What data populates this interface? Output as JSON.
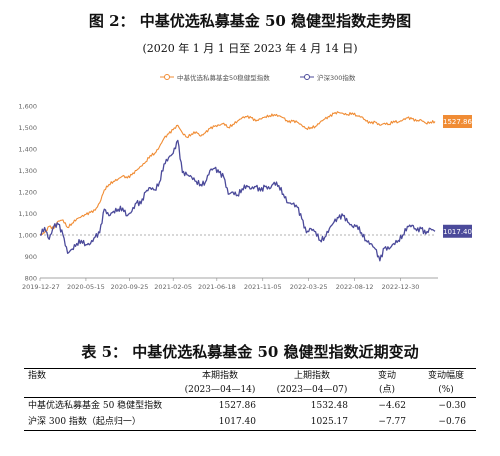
{
  "figure": {
    "title": "图 2： 中基优选私募基金 50 稳健型指数走势图",
    "subtitle": "(2020 年 1 月 1 日至 2023 年 4 月 14 日)"
  },
  "chart_data": {
    "type": "line",
    "title": "",
    "xlabel": "",
    "ylabel": "",
    "ylim": [
      800,
      1600
    ],
    "y_ticks": [
      "800",
      "900",
      "1,000",
      "1,100",
      "1,200",
      "1,300",
      "1,400",
      "1,500",
      "1,600"
    ],
    "x_ticks": [
      "2019-12-27",
      "2020-05-15",
      "2020-09-25",
      "2021-02-05",
      "2021-06-18",
      "2021-11-05",
      "2022-03-25",
      "2022-08-12",
      "2022-12-30"
    ],
    "reference_line": 1000,
    "legend_position": "top-center",
    "grid": false,
    "series": [
      {
        "name": "中基优选私募基金50稳健型指数",
        "color": "#F08C34",
        "end_label": "1527.86",
        "points": [
          [
            "2019-12-27",
            1000
          ],
          [
            "2020-01-10",
            1010
          ],
          [
            "2020-01-24",
            1040
          ],
          [
            "2020-02-07",
            1030
          ],
          [
            "2020-02-21",
            1065
          ],
          [
            "2020-03-06",
            1070
          ],
          [
            "2020-03-20",
            1035
          ],
          [
            "2020-04-03",
            1055
          ],
          [
            "2020-04-17",
            1075
          ],
          [
            "2020-05-01",
            1085
          ],
          [
            "2020-05-15",
            1095
          ],
          [
            "2020-05-29",
            1105
          ],
          [
            "2020-06-12",
            1115
          ],
          [
            "2020-06-26",
            1150
          ],
          [
            "2020-07-10",
            1210
          ],
          [
            "2020-07-24",
            1235
          ],
          [
            "2020-08-07",
            1250
          ],
          [
            "2020-08-21",
            1260
          ],
          [
            "2020-09-04",
            1275
          ],
          [
            "2020-09-18",
            1265
          ],
          [
            "2020-10-02",
            1280
          ],
          [
            "2020-10-16",
            1300
          ],
          [
            "2020-10-30",
            1320
          ],
          [
            "2020-11-13",
            1340
          ],
          [
            "2020-11-27",
            1370
          ],
          [
            "2020-12-11",
            1380
          ],
          [
            "2020-12-25",
            1410
          ],
          [
            "2021-01-08",
            1450
          ],
          [
            "2021-01-22",
            1470
          ],
          [
            "2021-02-05",
            1490
          ],
          [
            "2021-02-19",
            1510
          ],
          [
            "2021-03-05",
            1475
          ],
          [
            "2021-03-19",
            1455
          ],
          [
            "2021-04-02",
            1470
          ],
          [
            "2021-04-16",
            1480
          ],
          [
            "2021-04-30",
            1460
          ],
          [
            "2021-05-14",
            1475
          ],
          [
            "2021-05-28",
            1495
          ],
          [
            "2021-06-11",
            1505
          ],
          [
            "2021-06-25",
            1510
          ],
          [
            "2021-07-09",
            1520
          ],
          [
            "2021-07-23",
            1500
          ],
          [
            "2021-08-06",
            1515
          ],
          [
            "2021-08-20",
            1530
          ],
          [
            "2021-09-03",
            1545
          ],
          [
            "2021-09-17",
            1550
          ],
          [
            "2021-10-01",
            1545
          ],
          [
            "2021-10-15",
            1530
          ],
          [
            "2021-10-29",
            1540
          ],
          [
            "2021-11-12",
            1550
          ],
          [
            "2021-11-26",
            1555
          ],
          [
            "2021-12-10",
            1560
          ],
          [
            "2021-12-24",
            1555
          ],
          [
            "2022-01-07",
            1545
          ],
          [
            "2022-01-21",
            1525
          ],
          [
            "2022-02-04",
            1530
          ],
          [
            "2022-02-18",
            1525
          ],
          [
            "2022-03-04",
            1510
          ],
          [
            "2022-03-18",
            1495
          ],
          [
            "2022-04-01",
            1500
          ],
          [
            "2022-04-15",
            1505
          ],
          [
            "2022-04-29",
            1525
          ],
          [
            "2022-05-13",
            1540
          ],
          [
            "2022-05-27",
            1550
          ],
          [
            "2022-06-10",
            1565
          ],
          [
            "2022-06-24",
            1570
          ],
          [
            "2022-07-08",
            1565
          ],
          [
            "2022-07-22",
            1560
          ],
          [
            "2022-08-05",
            1568
          ],
          [
            "2022-08-19",
            1555
          ],
          [
            "2022-09-02",
            1550
          ],
          [
            "2022-09-16",
            1530
          ],
          [
            "2022-09-30",
            1520
          ],
          [
            "2022-10-14",
            1525
          ],
          [
            "2022-10-28",
            1510
          ],
          [
            "2022-11-11",
            1520
          ],
          [
            "2022-11-25",
            1515
          ],
          [
            "2022-12-09",
            1530
          ],
          [
            "2022-12-23",
            1525
          ],
          [
            "2023-01-06",
            1535
          ],
          [
            "2023-01-20",
            1545
          ],
          [
            "2023-02-03",
            1540
          ],
          [
            "2023-02-17",
            1530
          ],
          [
            "2023-03-03",
            1535
          ],
          [
            "2023-03-17",
            1520
          ],
          [
            "2023-03-31",
            1525
          ],
          [
            "2023-04-14",
            1527.86
          ]
        ]
      },
      {
        "name": "沪深300指数",
        "color": "#4B4A9A",
        "end_label": "1017.40",
        "points": [
          [
            "2019-12-27",
            1000
          ],
          [
            "2020-01-10",
            1035
          ],
          [
            "2020-01-24",
            980
          ],
          [
            "2020-02-07",
            1040
          ],
          [
            "2020-02-21",
            1050
          ],
          [
            "2020-03-06",
            1000
          ],
          [
            "2020-03-20",
            915
          ],
          [
            "2020-04-03",
            935
          ],
          [
            "2020-04-17",
            960
          ],
          [
            "2020-05-01",
            975
          ],
          [
            "2020-05-15",
            955
          ],
          [
            "2020-05-29",
            960
          ],
          [
            "2020-06-12",
            990
          ],
          [
            "2020-06-26",
            1010
          ],
          [
            "2020-07-10",
            1120
          ],
          [
            "2020-07-24",
            1090
          ],
          [
            "2020-08-07",
            1110
          ],
          [
            "2020-08-21",
            1120
          ],
          [
            "2020-09-04",
            1125
          ],
          [
            "2020-09-18",
            1090
          ],
          [
            "2020-10-02",
            1110
          ],
          [
            "2020-10-16",
            1150
          ],
          [
            "2020-10-30",
            1145
          ],
          [
            "2020-11-13",
            1200
          ],
          [
            "2020-11-27",
            1220
          ],
          [
            "2020-12-11",
            1210
          ],
          [
            "2020-12-25",
            1245
          ],
          [
            "2021-01-08",
            1330
          ],
          [
            "2021-01-22",
            1360
          ],
          [
            "2021-02-05",
            1380
          ],
          [
            "2021-02-19",
            1440
          ],
          [
            "2021-03-05",
            1290
          ],
          [
            "2021-03-19",
            1280
          ],
          [
            "2021-04-02",
            1270
          ],
          [
            "2021-04-16",
            1250
          ],
          [
            "2021-04-30",
            1235
          ],
          [
            "2021-05-14",
            1245
          ],
          [
            "2021-05-28",
            1300
          ],
          [
            "2021-06-11",
            1310
          ],
          [
            "2021-06-25",
            1290
          ],
          [
            "2021-07-09",
            1270
          ],
          [
            "2021-07-23",
            1190
          ],
          [
            "2021-08-06",
            1200
          ],
          [
            "2021-08-20",
            1185
          ],
          [
            "2021-09-03",
            1215
          ],
          [
            "2021-09-17",
            1230
          ],
          [
            "2021-10-01",
            1215
          ],
          [
            "2021-10-15",
            1225
          ],
          [
            "2021-10-29",
            1205
          ],
          [
            "2021-11-12",
            1225
          ],
          [
            "2021-11-26",
            1215
          ],
          [
            "2021-12-10",
            1245
          ],
          [
            "2021-12-24",
            1230
          ],
          [
            "2022-01-07",
            1190
          ],
          [
            "2022-01-21",
            1150
          ],
          [
            "2022-02-04",
            1145
          ],
          [
            "2022-02-18",
            1130
          ],
          [
            "2022-03-04",
            1075
          ],
          [
            "2022-03-18",
            1010
          ],
          [
            "2022-04-01",
            1030
          ],
          [
            "2022-04-15",
            1015
          ],
          [
            "2022-04-29",
            975
          ],
          [
            "2022-05-13",
            990
          ],
          [
            "2022-05-27",
            1030
          ],
          [
            "2022-06-10",
            1060
          ],
          [
            "2022-06-24",
            1080
          ],
          [
            "2022-07-08",
            1090
          ],
          [
            "2022-07-22",
            1060
          ],
          [
            "2022-08-05",
            1040
          ],
          [
            "2022-08-19",
            1045
          ],
          [
            "2022-09-02",
            1010
          ],
          [
            "2022-09-16",
            975
          ],
          [
            "2022-09-30",
            960
          ],
          [
            "2022-10-14",
            935
          ],
          [
            "2022-10-28",
            880
          ],
          [
            "2022-11-11",
            940
          ],
          [
            "2022-11-25",
            935
          ],
          [
            "2022-12-09",
            960
          ],
          [
            "2022-12-23",
            975
          ],
          [
            "2023-01-06",
            1000
          ],
          [
            "2023-01-20",
            1040
          ],
          [
            "2023-02-03",
            1045
          ],
          [
            "2023-02-17",
            1020
          ],
          [
            "2023-03-03",
            1030
          ],
          [
            "2023-03-17",
            1005
          ],
          [
            "2023-03-31",
            1030
          ],
          [
            "2023-04-14",
            1017.4
          ]
        ]
      }
    ]
  },
  "table": {
    "title": "表 5： 中基优选私募基金 50 稳健型指数近期变动",
    "headers": {
      "index": "指数",
      "current": "本期指数",
      "current_date": "(2023—04—14)",
      "previous": "上期指数",
      "previous_date": "(2023—04—07)",
      "change": "变动",
      "change_unit": "(点)",
      "pct": "变动幅度",
      "pct_unit": "(%)"
    },
    "rows": [
      {
        "name": "中基优选私募基金 50 稳健型指数",
        "current": "1527.86",
        "previous": "1532.48",
        "change": "−4.62",
        "pct": "−0.30"
      },
      {
        "name": "沪深 300 指数（起点归一）",
        "current": "1017.40",
        "previous": "1025.17",
        "change": "−7.77",
        "pct": "−0.76"
      }
    ]
  }
}
